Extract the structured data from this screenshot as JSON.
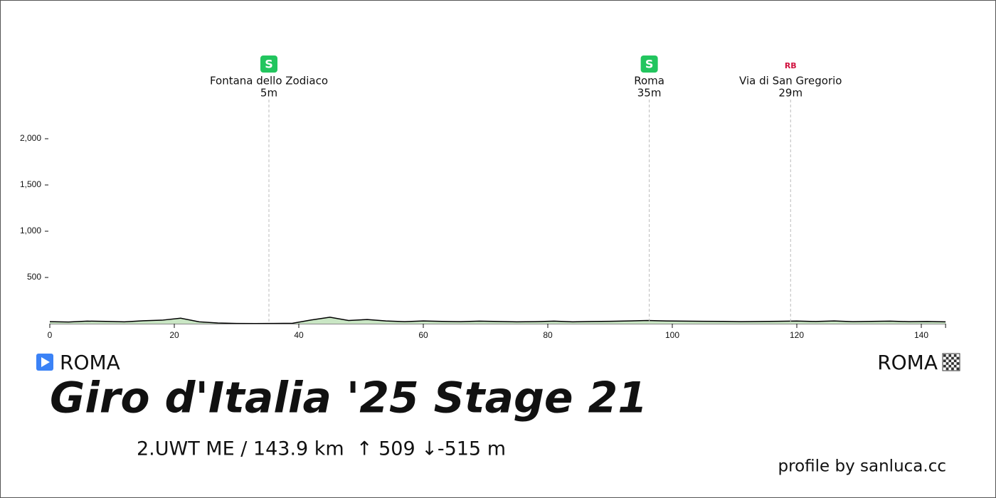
{
  "chart_data": {
    "type": "area",
    "title": "Giro d'Italia '25 Stage 21",
    "subtitle": "2.UWT ME / 143.9 km  ↑ 509 ↓-515 m",
    "start": "ROMA",
    "finish": "ROMA",
    "credit": "profile by sanluca.cc",
    "x": [
      0,
      3,
      6,
      9,
      12,
      15,
      18,
      21,
      24,
      27,
      30,
      33,
      36,
      39,
      42,
      45,
      48,
      51,
      54,
      57,
      60,
      63,
      66,
      69,
      72,
      75,
      78,
      81,
      84,
      87,
      90,
      93,
      96,
      99,
      102,
      105,
      108,
      111,
      114,
      117,
      120,
      123,
      126,
      129,
      132,
      135,
      138,
      141,
      143.9
    ],
    "values": [
      22,
      18,
      28,
      25,
      20,
      32,
      38,
      60,
      20,
      8,
      3,
      2,
      3,
      5,
      40,
      70,
      35,
      45,
      30,
      22,
      30,
      25,
      22,
      28,
      24,
      20,
      22,
      28,
      20,
      24,
      26,
      30,
      35,
      30,
      28,
      26,
      25,
      22,
      24,
      26,
      29,
      24,
      30,
      22,
      25,
      28,
      22,
      24,
      20
    ],
    "color": "#c9e6c4",
    "line_color": "#000000",
    "xlim": [
      0,
      143.9
    ],
    "ylim": [
      0,
      2300
    ],
    "xticks": [
      0,
      20,
      40,
      60,
      80,
      100,
      120,
      140
    ],
    "yticks": [
      500,
      {
        "value": 1000,
        "label": "1,000"
      },
      {
        "value": 1500,
        "label": "1,500"
      },
      {
        "value": 2000,
        "label": "2,000"
      }
    ],
    "markers": [
      {
        "x": 35.2,
        "badge": "S",
        "name": "Fontana dello Zodiaco",
        "elevation": "5m",
        "color": "#22c55e"
      },
      {
        "x": 96.3,
        "badge": "S",
        "name": "Roma",
        "elevation": "35m",
        "color": "#22c55e"
      },
      {
        "x": 119.0,
        "badge": "RB",
        "name": "Via di San Gregorio",
        "elevation": "29m",
        "color": "#d1123f"
      }
    ]
  }
}
